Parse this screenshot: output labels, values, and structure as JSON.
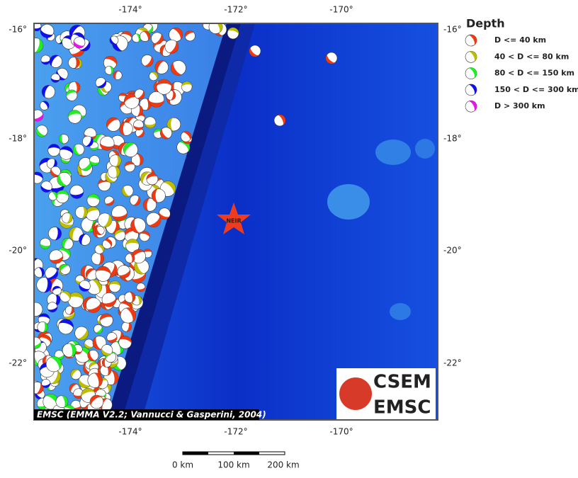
{
  "map": {
    "axes": {
      "top": [
        "-174°",
        "-172°",
        "-170°"
      ],
      "bottom": [
        "-174°",
        "-172°",
        "-170°"
      ],
      "left": [
        "-16°",
        "-18°",
        "-20°",
        "-22°"
      ],
      "right": [
        "-16°",
        "-18°",
        "-20°",
        "-22°"
      ]
    },
    "marker": {
      "label": "NEIR",
      "color": "#f03c1e"
    },
    "attribution": "EMSC (EMMA V2.2; Vannucci & Gasperini, 2004)",
    "scale_bar": {
      "labels": [
        "0 km",
        "100 km",
        "200 km"
      ]
    },
    "logo": {
      "lines": [
        "CSEM",
        "EMSC"
      ]
    }
  },
  "legend": {
    "title": "Depth",
    "items": [
      {
        "label": "D <= 40 km",
        "color": "#ee3a12"
      },
      {
        "label": "40 < D <= 80 km",
        "color": "#bebe00"
      },
      {
        "label": "80 < D <= 150 km",
        "color": "#22ee22"
      },
      {
        "label": "150 < D <= 300 km",
        "color": "#1010ee"
      },
      {
        "label": "D > 300 km",
        "color": "#ee10ee"
      }
    ]
  }
}
